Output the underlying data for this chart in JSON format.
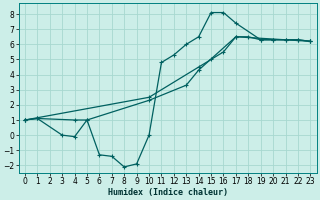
{
  "xlabel": "Humidex (Indice chaleur)",
  "background_color": "#cceee8",
  "grid_color": "#a8d8d0",
  "line_color": "#006060",
  "xlim": [
    -0.5,
    23.5
  ],
  "ylim": [
    -2.5,
    8.7
  ],
  "xticks": [
    0,
    1,
    2,
    3,
    4,
    5,
    6,
    7,
    8,
    9,
    10,
    11,
    12,
    13,
    14,
    15,
    16,
    17,
    18,
    19,
    20,
    21,
    22,
    23
  ],
  "yticks": [
    -2,
    -1,
    0,
    1,
    2,
    3,
    4,
    5,
    6,
    7,
    8
  ],
  "line1_x": [
    0,
    1,
    3,
    4,
    5,
    6,
    7,
    8,
    9,
    10,
    11,
    12,
    13,
    14,
    15,
    16,
    17,
    19,
    20,
    21,
    22,
    23
  ],
  "line1_y": [
    1.0,
    1.1,
    0.0,
    -0.1,
    1.0,
    -1.3,
    -1.4,
    -2.1,
    -1.9,
    0.0,
    4.8,
    5.3,
    6.0,
    6.5,
    8.1,
    8.1,
    7.4,
    6.3,
    6.3,
    6.3,
    6.3,
    6.2
  ],
  "line2_x": [
    0,
    10,
    14,
    15,
    16,
    17,
    18,
    19,
    20,
    21,
    22,
    23
  ],
  "line2_y": [
    1.0,
    2.5,
    4.5,
    5.0,
    5.5,
    6.5,
    6.5,
    6.3,
    6.3,
    6.3,
    6.3,
    6.2
  ],
  "line3_x": [
    0,
    1,
    4,
    5,
    10,
    13,
    14,
    17,
    23
  ],
  "line3_y": [
    1.0,
    1.1,
    1.0,
    1.0,
    2.3,
    3.3,
    4.3,
    6.5,
    6.2
  ]
}
